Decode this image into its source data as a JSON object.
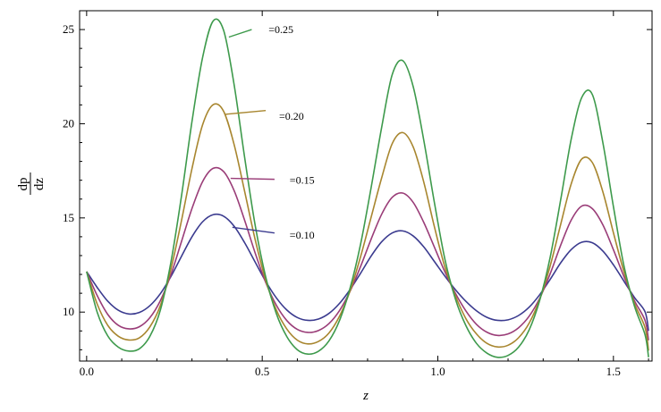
{
  "chart_data": {
    "type": "line",
    "xlabel": "z",
    "ylabel_numerator": "dp",
    "ylabel_denominator": "dz",
    "xlim": [
      -0.02,
      1.61
    ],
    "ylim": [
      7.4,
      26.0
    ],
    "x_ticks": [
      0.0,
      0.5,
      1.0,
      1.5
    ],
    "x_tick_labels": [
      "0.0",
      "0.5",
      "1.0",
      "1.5"
    ],
    "y_ticks": [
      10,
      15,
      20,
      25
    ],
    "y_tick_labels": [
      "10",
      "15",
      "20",
      "25"
    ],
    "grid": false,
    "series": [
      {
        "name": "=0.10",
        "color": "#3b3b8f",
        "x": [
          0.0,
          0.03,
          0.06,
          0.09,
          0.12,
          0.15,
          0.18,
          0.21,
          0.24,
          0.27,
          0.3,
          0.33,
          0.36,
          0.39,
          0.42,
          0.45,
          0.48,
          0.51,
          0.54,
          0.57,
          0.6,
          0.63,
          0.66,
          0.69,
          0.72,
          0.75,
          0.78,
          0.81,
          0.84,
          0.87,
          0.9,
          0.93,
          0.96,
          0.99,
          1.02,
          1.05,
          1.08,
          1.11,
          1.14,
          1.17,
          1.2,
          1.23,
          1.26,
          1.29,
          1.32,
          1.35,
          1.38,
          1.41,
          1.44,
          1.47,
          1.5,
          1.53,
          1.56,
          1.59,
          1.6
        ],
        "y": [
          12.15,
          11.31,
          10.58,
          10.1,
          9.9,
          9.98,
          10.34,
          10.98,
          11.89,
          12.96,
          14.0,
          14.79,
          15.17,
          15.09,
          14.56,
          13.68,
          12.65,
          11.63,
          10.76,
          10.11,
          9.71,
          9.56,
          9.63,
          9.93,
          10.46,
          11.19,
          12.06,
          12.97,
          13.73,
          14.2,
          14.31,
          14.04,
          13.46,
          12.69,
          11.91,
          11.19,
          10.57,
          10.07,
          9.72,
          9.56,
          9.59,
          9.82,
          10.26,
          10.92,
          11.74,
          12.62,
          13.32,
          13.71,
          13.68,
          13.24,
          12.51,
          11.64,
          10.77,
          10.02,
          9.0
        ]
      },
      {
        "name": "=0.15",
        "color": "#9a3d78",
        "x": [
          0.0,
          0.03,
          0.06,
          0.09,
          0.12,
          0.15,
          0.18,
          0.21,
          0.24,
          0.27,
          0.3,
          0.33,
          0.36,
          0.39,
          0.42,
          0.45,
          0.48,
          0.51,
          0.54,
          0.57,
          0.6,
          0.63,
          0.66,
          0.69,
          0.72,
          0.75,
          0.78,
          0.81,
          0.84,
          0.87,
          0.9,
          0.93,
          0.96,
          0.99,
          1.02,
          1.05,
          1.08,
          1.11,
          1.14,
          1.17,
          1.2,
          1.23,
          1.26,
          1.29,
          1.32,
          1.35,
          1.38,
          1.41,
          1.44,
          1.47,
          1.5,
          1.53,
          1.56,
          1.59,
          1.6
        ],
        "y": [
          12.15,
          10.88,
          9.88,
          9.3,
          9.11,
          9.22,
          9.7,
          10.61,
          11.99,
          13.74,
          15.5,
          16.92,
          17.63,
          17.46,
          16.45,
          14.87,
          13.13,
          11.57,
          10.37,
          9.55,
          9.08,
          8.92,
          9.02,
          9.39,
          10.08,
          11.1,
          12.42,
          13.87,
          15.19,
          16.09,
          16.32,
          15.82,
          14.76,
          13.46,
          12.14,
          11.0,
          10.06,
          9.35,
          8.93,
          8.76,
          8.84,
          9.17,
          9.78,
          10.73,
          12.04,
          13.56,
          14.89,
          15.63,
          15.49,
          14.63,
          13.31,
          11.88,
          10.6,
          9.56,
          8.5
        ]
      },
      {
        "name": "=0.20",
        "color": "#a8862f",
        "x": [
          0.0,
          0.03,
          0.06,
          0.09,
          0.12,
          0.15,
          0.18,
          0.21,
          0.24,
          0.27,
          0.3,
          0.33,
          0.36,
          0.39,
          0.42,
          0.45,
          0.48,
          0.51,
          0.54,
          0.57,
          0.6,
          0.63,
          0.66,
          0.69,
          0.72,
          0.75,
          0.78,
          0.81,
          0.84,
          0.87,
          0.9,
          0.93,
          0.96,
          0.99,
          1.02,
          1.05,
          1.08,
          1.11,
          1.14,
          1.17,
          1.2,
          1.23,
          1.26,
          1.29,
          1.32,
          1.35,
          1.38,
          1.41,
          1.44,
          1.47,
          1.5,
          1.53,
          1.56,
          1.59,
          1.6
        ],
        "y": [
          12.15,
          10.43,
          9.3,
          8.72,
          8.52,
          8.63,
          9.21,
          10.35,
          12.28,
          14.85,
          17.62,
          19.93,
          21.01,
          20.66,
          18.89,
          16.4,
          13.84,
          11.69,
          10.12,
          9.1,
          8.51,
          8.31,
          8.44,
          8.89,
          9.78,
          11.12,
          12.94,
          15.03,
          17.12,
          18.94,
          19.53,
          18.76,
          16.9,
          14.55,
          12.4,
          10.87,
          9.65,
          8.84,
          8.34,
          8.15,
          8.24,
          8.64,
          9.41,
          10.67,
          12.46,
          14.67,
          16.82,
          18.13,
          17.94,
          16.38,
          14.21,
          12.14,
          10.46,
          9.18,
          7.95
        ]
      },
      {
        "name": "=0.25",
        "color": "#3e9a4c",
        "x": [
          0.0,
          0.03,
          0.06,
          0.09,
          0.12,
          0.15,
          0.18,
          0.21,
          0.24,
          0.27,
          0.3,
          0.33,
          0.36,
          0.39,
          0.42,
          0.45,
          0.48,
          0.51,
          0.54,
          0.57,
          0.6,
          0.63,
          0.66,
          0.69,
          0.72,
          0.75,
          0.78,
          0.81,
          0.84,
          0.87,
          0.9,
          0.93,
          0.96,
          0.99,
          1.02,
          1.05,
          1.08,
          1.11,
          1.14,
          1.17,
          1.2,
          1.23,
          1.26,
          1.29,
          1.32,
          1.35,
          1.38,
          1.41,
          1.44,
          1.47,
          1.5,
          1.53,
          1.56,
          1.59,
          1.6
        ],
        "y": [
          12.15,
          10.0,
          8.74,
          8.14,
          7.93,
          8.05,
          8.71,
          10.11,
          12.65,
          16.15,
          20.12,
          23.5,
          25.45,
          24.96,
          22.07,
          18.2,
          14.6,
          11.86,
          9.93,
          8.7,
          8.0,
          7.77,
          7.92,
          8.47,
          9.55,
          11.26,
          13.6,
          16.6,
          19.8,
          22.6,
          23.35,
          21.96,
          19.12,
          15.84,
          12.82,
          10.7,
          9.28,
          8.34,
          7.82,
          7.6,
          7.7,
          8.14,
          9.05,
          10.62,
          12.92,
          15.98,
          19.2,
          21.4,
          21.55,
          18.99,
          15.6,
          12.45,
          10.31,
          8.8,
          7.6
        ]
      }
    ],
    "annotations": [
      {
        "text": "=0.25",
        "series": 3,
        "x": 0.405,
        "y": 24.6,
        "lx": 0.47,
        "ly": 25.0,
        "tx": 0.518,
        "ty": 25.0
      },
      {
        "text": "=0.20",
        "series": 2,
        "x": 0.395,
        "y": 20.5,
        "lx": 0.51,
        "ly": 20.7,
        "tx": 0.548,
        "ty": 20.4
      },
      {
        "text": "=0.15",
        "series": 1,
        "x": 0.41,
        "y": 17.1,
        "lx": 0.535,
        "ly": 17.05,
        "tx": 0.578,
        "ty": 17.0
      },
      {
        "text": "=0.10",
        "series": 0,
        "x": 0.415,
        "y": 14.5,
        "lx": 0.535,
        "ly": 14.2,
        "tx": 0.578,
        "ty": 14.1
      }
    ]
  }
}
